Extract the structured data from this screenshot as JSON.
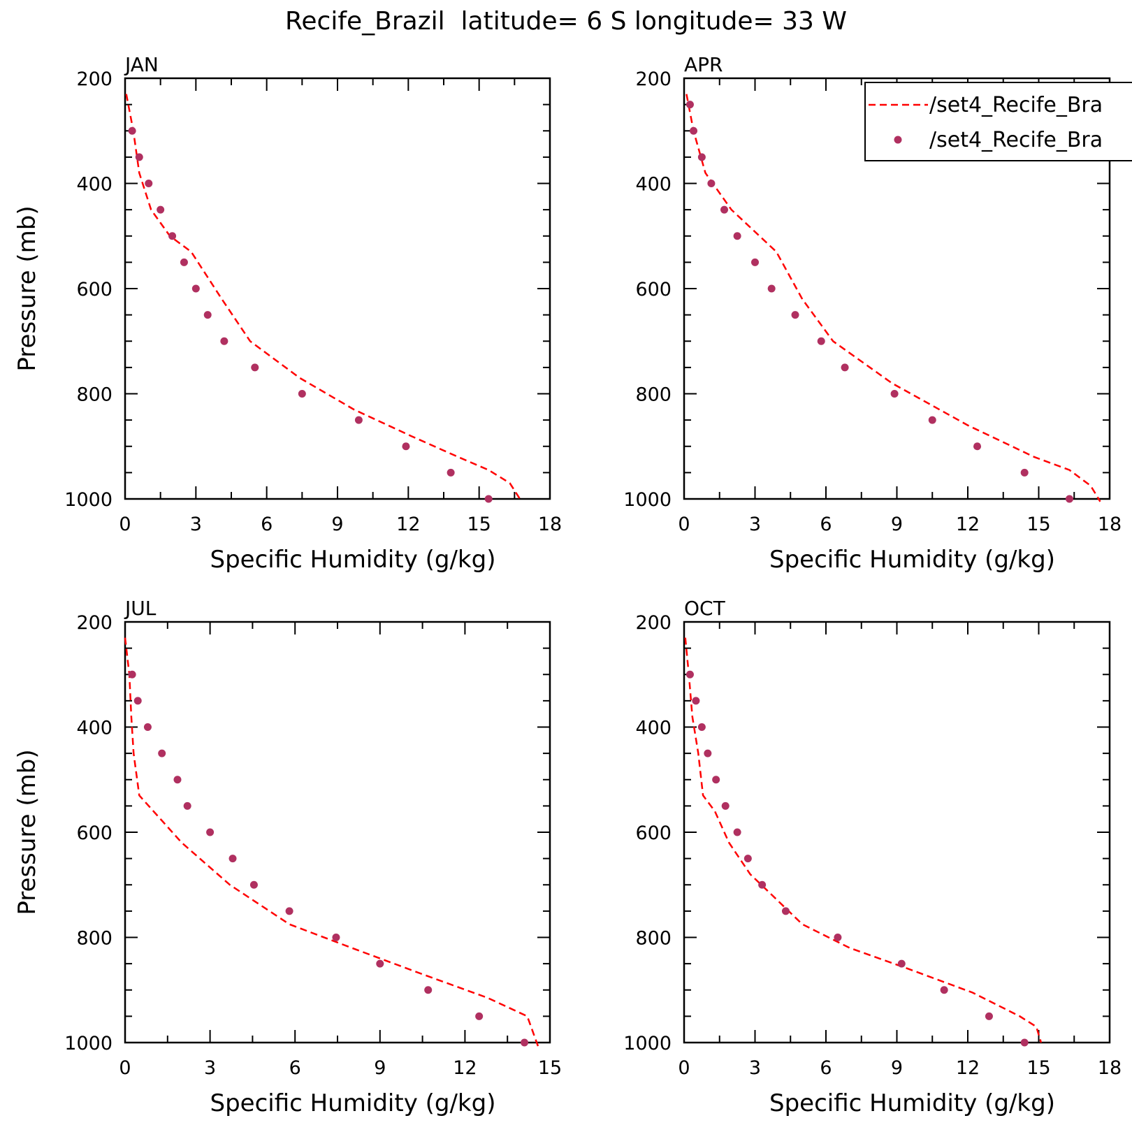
{
  "page": {
    "title": "Recife_Brazil  latitude= 6 S longitude= 33 W"
  },
  "colors": {
    "model_line": "#ff0000",
    "obs_points": "#b03060",
    "axes": "#000000"
  },
  "legend": {
    "placement": "top-right of APR panel",
    "entries": [
      {
        "label": "/set4_Recife_Bra",
        "style": "dashed-line",
        "color": "#ff0000"
      },
      {
        "label": "/set4_Recife_Bra",
        "style": "dots",
        "color": "#b03060"
      }
    ]
  },
  "chart_data": [
    {
      "type": "line",
      "panel_label": "JAN",
      "xlabel": "Specific Humidity (g/kg)",
      "ylabel": "Pressure (mb)",
      "xlim": [
        0,
        18
      ],
      "ylim": [
        1000,
        200
      ],
      "x_ticks": [
        "0",
        "3",
        "6",
        "9",
        "12",
        "15",
        "18"
      ],
      "y_ticks": [
        "200",
        "400",
        "600",
        "800",
        "1000"
      ],
      "series": [
        {
          "style": "dashed-line",
          "x": [
            0.05,
            0.35,
            0.6,
            1.1,
            1.9,
            2.8,
            4.1,
            5.3,
            7.4,
            9.7,
            12.1,
            14.1,
            15.4,
            16.3,
            16.8
          ],
          "y": [
            230,
            300,
            380,
            450,
            500,
            530,
            620,
            700,
            770,
            830,
            880,
            920,
            945,
            970,
            1005
          ]
        },
        {
          "style": "dots",
          "x": [
            0.3,
            0.6,
            1.0,
            1.5,
            2.0,
            2.5,
            3.0,
            3.5,
            4.2,
            5.5,
            7.5,
            9.9,
            11.9,
            13.8,
            15.4
          ],
          "y": [
            300,
            350,
            400,
            450,
            500,
            550,
            600,
            650,
            700,
            750,
            800,
            850,
            900,
            950,
            1000
          ]
        }
      ]
    },
    {
      "type": "line",
      "panel_label": "APR",
      "xlabel": "Specific Humidity (g/kg)",
      "ylabel": "",
      "xlim": [
        0,
        18
      ],
      "ylim": [
        1000,
        200
      ],
      "x_ticks": [
        "0",
        "3",
        "6",
        "9",
        "12",
        "15",
        "18"
      ],
      "y_ticks": [
        "200",
        "400",
        "600",
        "800",
        "1000"
      ],
      "series": [
        {
          "style": "dashed-line",
          "x": [
            0.1,
            0.4,
            0.9,
            2.0,
            3.9,
            5.0,
            6.3,
            8.8,
            12.0,
            14.8,
            16.3,
            17.2,
            17.6
          ],
          "y": [
            230,
            300,
            380,
            450,
            530,
            620,
            700,
            780,
            860,
            920,
            945,
            975,
            1005
          ]
        },
        {
          "style": "dots",
          "x": [
            0.25,
            0.4,
            0.75,
            1.15,
            1.7,
            2.25,
            3.0,
            3.7,
            4.7,
            5.8,
            6.8,
            8.9,
            10.5,
            12.4,
            14.4,
            16.3
          ],
          "y": [
            250,
            300,
            350,
            400,
            450,
            500,
            550,
            600,
            650,
            700,
            750,
            800,
            850,
            900,
            950,
            1000
          ]
        }
      ]
    },
    {
      "type": "line",
      "panel_label": "JUL",
      "xlabel": "Specific Humidity (g/kg)",
      "ylabel": "Pressure (mb)",
      "xlim": [
        0,
        15
      ],
      "ylim": [
        1000,
        200
      ],
      "x_ticks": [
        "0",
        "3",
        "6",
        "9",
        "12",
        "15"
      ],
      "y_ticks": [
        "200",
        "400",
        "600",
        "800",
        "1000"
      ],
      "series": [
        {
          "style": "dashed-line",
          "x": [
            0.0,
            0.15,
            0.22,
            0.3,
            0.5,
            2.0,
            3.7,
            5.8,
            8.0,
            10.5,
            12.8,
            14.2,
            14.6
          ],
          "y": [
            230,
            300,
            380,
            450,
            530,
            620,
            700,
            775,
            820,
            870,
            915,
            950,
            1010
          ]
        },
        {
          "style": "dots",
          "x": [
            0.25,
            0.45,
            0.8,
            1.3,
            1.85,
            2.2,
            3.0,
            3.8,
            4.55,
            5.8,
            7.45,
            9.0,
            10.7,
            12.5,
            14.1
          ],
          "y": [
            300,
            350,
            400,
            450,
            500,
            550,
            600,
            650,
            700,
            750,
            800,
            850,
            900,
            950,
            1000
          ]
        }
      ]
    },
    {
      "type": "line",
      "panel_label": "OCT",
      "xlabel": "Specific Humidity (g/kg)",
      "ylabel": "",
      "xlim": [
        0,
        18
      ],
      "ylim": [
        1000,
        200
      ],
      "x_ticks": [
        "0",
        "3",
        "6",
        "9",
        "12",
        "15",
        "18"
      ],
      "y_ticks": [
        "200",
        "400",
        "600",
        "800",
        "1000"
      ],
      "series": [
        {
          "style": "dashed-line",
          "x": [
            0.05,
            0.2,
            0.35,
            0.6,
            0.8,
            1.3,
            1.9,
            2.8,
            3.5,
            5.0,
            7.0,
            9.5,
            12.2,
            14.2,
            14.9,
            15.1
          ],
          "y": [
            230,
            300,
            380,
            450,
            530,
            560,
            620,
            680,
            710,
            775,
            820,
            860,
            905,
            950,
            970,
            1000
          ]
        },
        {
          "style": "dots",
          "x": [
            0.25,
            0.5,
            0.75,
            1.0,
            1.35,
            1.75,
            2.25,
            2.7,
            3.3,
            4.3,
            6.5,
            9.2,
            11.0,
            12.9,
            14.4
          ],
          "y": [
            300,
            350,
            400,
            450,
            500,
            550,
            600,
            650,
            700,
            750,
            800,
            850,
            900,
            950,
            1000
          ]
        }
      ]
    }
  ]
}
